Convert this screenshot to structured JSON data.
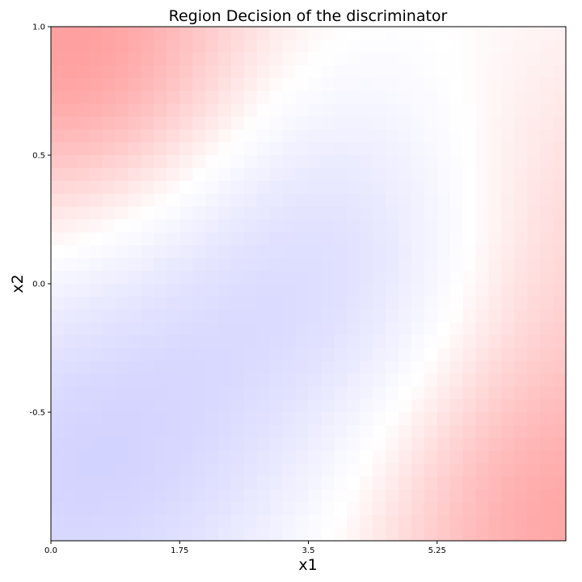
{
  "chart_data": {
    "type": "heatmap",
    "title": "Region Decision of the discriminator",
    "xlabel": "x1",
    "ylabel": "x2",
    "xlim": [
      0.0,
      7.0
    ],
    "ylim": [
      -1.0,
      1.0
    ],
    "x_ticks": [
      {
        "value": 0.0,
        "label": "0.0"
      },
      {
        "value": 1.75,
        "label": "1.75"
      },
      {
        "value": 3.5,
        "label": "3.5"
      },
      {
        "value": 5.25,
        "label": "5.25"
      }
    ],
    "y_ticks": [
      {
        "value": 1.0,
        "label": "1.0"
      },
      {
        "value": 0.5,
        "label": "0.5"
      },
      {
        "value": 0.0,
        "label": "0.0"
      },
      {
        "value": -0.5,
        "label": "-0.5"
      }
    ],
    "grid": false,
    "colormap": {
      "low": "#c8c8ff",
      "mid": "#ffffff",
      "high": "#ff9a9a"
    },
    "field_peaks": [
      {
        "x": 0.4,
        "y": 0.9,
        "value": 1.0
      },
      {
        "x": 6.9,
        "y": -0.95,
        "value": 0.85
      },
      {
        "x": 7.0,
        "y": 0.25,
        "value": 0.45
      },
      {
        "x": 3.9,
        "y": 0.15,
        "value": -0.65
      },
      {
        "x": 0.1,
        "y": -0.85,
        "value": -0.6
      },
      {
        "x": 1.5,
        "y": -0.35,
        "value": -0.3
      }
    ]
  }
}
